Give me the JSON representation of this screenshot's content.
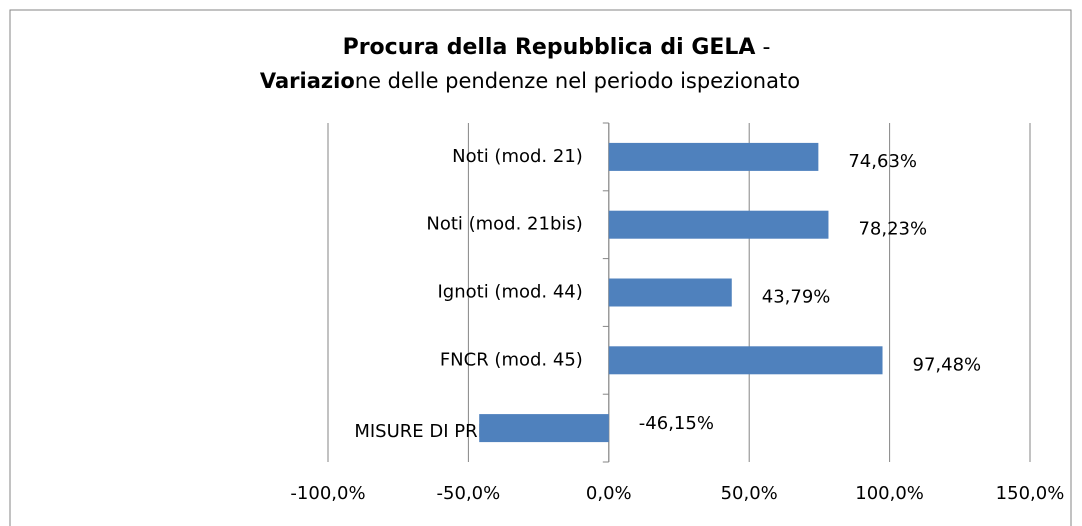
{
  "chart_data": {
    "type": "barh",
    "title": {
      "line1_bold": "Procura della Repubblica di GELA",
      "line1_rest": " - ",
      "line2_bold": "Variazio",
      "line2_rest": "ne delle pendenze nel periodo ispezionato"
    },
    "categories": [
      "Noti (mod. 21)",
      "Noti (mod. 21bis)",
      "Ignoti (mod. 44)",
      "FNCR (mod. 45)",
      "MISURE DI PREVENZIONE"
    ],
    "values": [
      74.63,
      78.23,
      43.79,
      97.48,
      -46.15
    ],
    "value_labels": [
      "74,63%",
      "78,23%",
      "43,79%",
      "97,48%",
      "-46,15%"
    ],
    "color": "#4f81bd",
    "xlim": [
      -100,
      150
    ],
    "xticks": [
      {
        "value": -100,
        "label": "-100,0%"
      },
      {
        "value": -50,
        "label": "-50,0%"
      },
      {
        "value": 0,
        "label": "0,0%"
      },
      {
        "value": 50,
        "label": "50,0%"
      },
      {
        "value": 100,
        "label": "100,0%"
      },
      {
        "value": 150,
        "label": "150,0%"
      }
    ],
    "grid": true
  }
}
